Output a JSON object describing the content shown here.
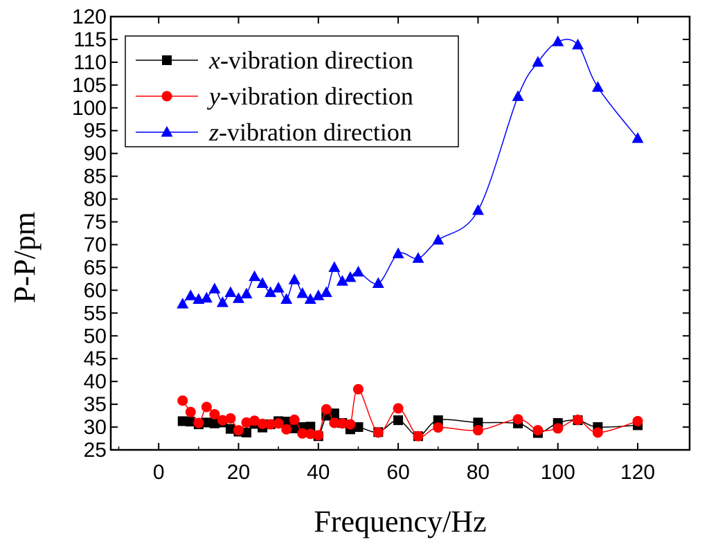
{
  "chart_data": {
    "type": "line",
    "xlabel": "Frequency/Hz",
    "ylabel": "P-P/pm",
    "xlim": [
      -12,
      133
    ],
    "ylim": [
      25,
      120
    ],
    "xticks": [
      0,
      20,
      40,
      60,
      80,
      100,
      120
    ],
    "yticks": [
      25,
      30,
      35,
      40,
      45,
      50,
      55,
      60,
      65,
      70,
      75,
      80,
      85,
      90,
      95,
      100,
      105,
      110,
      115,
      120
    ],
    "grid": false,
    "legend_position": "top-left",
    "series": [
      {
        "name": "x-vibration direction",
        "label_prefix": "x",
        "label_suffix": "-vibration direction",
        "color": "#000000",
        "marker": "square",
        "x": [
          6,
          8,
          10,
          12,
          14,
          16,
          18,
          20,
          22,
          24,
          26,
          28,
          30,
          32,
          34,
          36,
          38,
          40,
          42,
          44,
          46,
          48,
          50,
          55,
          60,
          65,
          70,
          80,
          90,
          95,
          100,
          105,
          110,
          120
        ],
        "y": [
          31.3,
          31.2,
          30.6,
          31.0,
          30.8,
          31.0,
          29.6,
          29.0,
          28.8,
          30.7,
          29.9,
          30.6,
          31.3,
          31.2,
          29.7,
          30.0,
          30.1,
          28.0,
          32.5,
          33.0,
          30.9,
          29.5,
          30.0,
          28.9,
          31.5,
          28.0,
          31.5,
          31.0,
          30.8,
          28.7,
          30.9,
          31.5,
          30.0,
          30.4
        ]
      },
      {
        "name": "y-vibration direction",
        "label_prefix": "y",
        "label_suffix": "-vibration direction",
        "color": "#ff0000",
        "marker": "circle",
        "x": [
          6,
          8,
          10,
          12,
          14,
          16,
          18,
          20,
          22,
          24,
          26,
          28,
          30,
          32,
          34,
          36,
          38,
          40,
          42,
          44,
          46,
          48,
          50,
          55,
          60,
          65,
          70,
          80,
          90,
          95,
          100,
          105,
          110,
          120
        ],
        "y": [
          35.8,
          33.3,
          30.9,
          34.4,
          32.8,
          31.5,
          31.9,
          29.3,
          31.0,
          31.4,
          30.7,
          30.6,
          30.8,
          29.5,
          31.6,
          28.6,
          28.5,
          28.2,
          33.9,
          30.9,
          30.8,
          30.6,
          38.3,
          28.8,
          34.1,
          28.0,
          29.9,
          29.3,
          31.7,
          29.3,
          29.7,
          31.6,
          28.8,
          31.3
        ]
      },
      {
        "name": "z-vibration direction",
        "label_prefix": "z",
        "label_suffix": "-vibration direction",
        "color": "#0000ff",
        "marker": "triangle",
        "x": [
          6,
          8,
          10,
          12,
          14,
          16,
          18,
          20,
          22,
          24,
          26,
          28,
          30,
          32,
          34,
          36,
          38,
          40,
          42,
          44,
          46,
          48,
          50,
          55,
          60,
          65,
          70,
          80,
          90,
          95,
          100,
          105,
          110,
          120
        ],
        "y": [
          57.0,
          58.8,
          58.0,
          58.3,
          60.3,
          57.3,
          59.5,
          58.2,
          59.2,
          63.0,
          61.5,
          59.5,
          60.5,
          58.0,
          62.3,
          59.3,
          58.0,
          58.8,
          59.5,
          65.0,
          62.0,
          62.8,
          64.0,
          61.5,
          68.0,
          67.0,
          71.0,
          77.5,
          102.5,
          110.0,
          114.5,
          113.8,
          104.5,
          93.3
        ]
      }
    ]
  }
}
